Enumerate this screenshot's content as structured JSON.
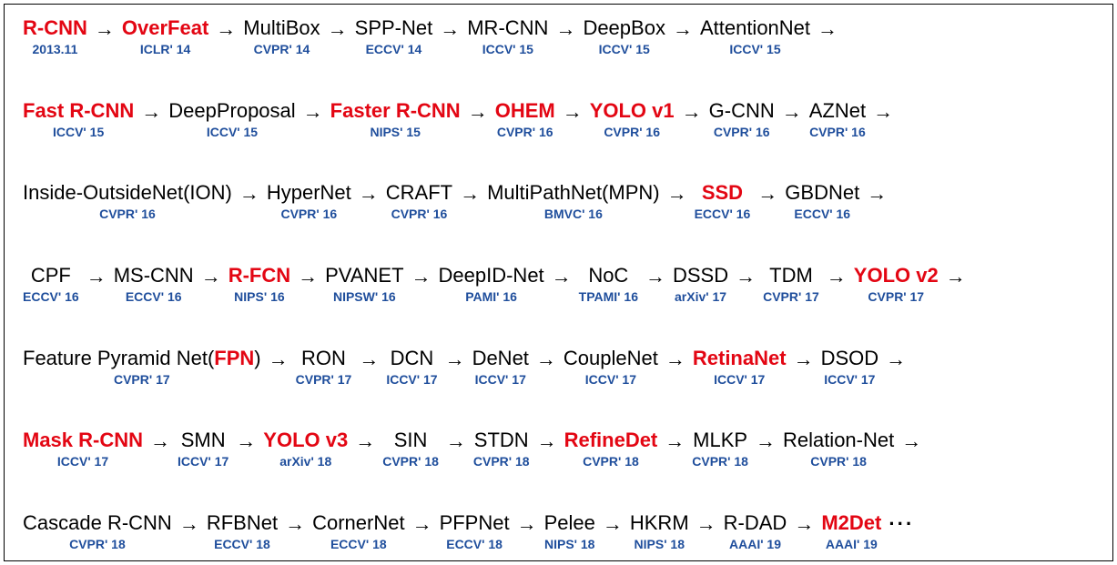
{
  "diagram": {
    "background_color": "#ffffff",
    "border_color": "#000000",
    "title_fontsize": 22,
    "venue_fontsize": 14,
    "highlight_color": "#e30613",
    "venue_color": "#1f4e9c",
    "arrow_glyph": "→",
    "ellipsis_glyph": "···",
    "rows": [
      [
        {
          "title": "R-CNN",
          "venue": "2013.11",
          "highlight": true
        },
        {
          "title": "OverFeat",
          "venue": "ICLR' 14",
          "highlight": true
        },
        {
          "title": "MultiBox",
          "venue": "CVPR' 14"
        },
        {
          "title": "SPP-Net",
          "venue": "ECCV' 14"
        },
        {
          "title": "MR-CNN",
          "venue": "ICCV' 15"
        },
        {
          "title": "DeepBox",
          "venue": "ICCV' 15"
        },
        {
          "title": "AttentionNet",
          "venue": "ICCV' 15"
        }
      ],
      [
        {
          "title": "Fast R-CNN",
          "venue": "ICCV' 15",
          "highlight": true
        },
        {
          "title": "DeepProposal",
          "venue": "ICCV' 15"
        },
        {
          "title": "Faster R-CNN",
          "venue": "NIPS' 15",
          "highlight": true
        },
        {
          "title": "OHEM",
          "venue": "CVPR' 16",
          "highlight": true
        },
        {
          "title": "YOLO v1",
          "venue": "CVPR' 16",
          "highlight": true
        },
        {
          "title": "G-CNN",
          "venue": "CVPR' 16"
        },
        {
          "title": "AZNet",
          "venue": "CVPR' 16"
        }
      ],
      [
        {
          "title": "Inside-OutsideNet(ION)",
          "venue": "CVPR' 16"
        },
        {
          "title": "HyperNet",
          "venue": "CVPR' 16"
        },
        {
          "title": "CRAFT",
          "venue": "CVPR' 16"
        },
        {
          "title": "MultiPathNet(MPN)",
          "venue": "BMVC' 16"
        },
        {
          "title": "SSD",
          "venue": "ECCV' 16",
          "highlight": true
        },
        {
          "title": "GBDNet",
          "venue": "ECCV' 16"
        }
      ],
      [
        {
          "title": "CPF",
          "venue": "ECCV' 16"
        },
        {
          "title": "MS-CNN",
          "venue": "ECCV' 16"
        },
        {
          "title": "R-FCN",
          "venue": "NIPS' 16",
          "highlight": true
        },
        {
          "title": "PVANET",
          "venue": "NIPSW' 16"
        },
        {
          "title": "DeepID-Net",
          "venue": "PAMI' 16"
        },
        {
          "title": "NoC",
          "venue": "TPAMI' 16"
        },
        {
          "title": "DSSD",
          "venue": "arXiv' 17"
        },
        {
          "title": "TDM",
          "venue": "CVPR' 17"
        },
        {
          "title": "YOLO v2",
          "venue": "CVPR' 17",
          "highlight": true
        }
      ],
      [
        {
          "title_html": "Feature Pyramid Net(<span class=\"hl-span\">FPN</span>)",
          "venue": "CVPR' 17"
        },
        {
          "title": "RON",
          "venue": "CVPR' 17"
        },
        {
          "title": "DCN",
          "venue": "ICCV' 17"
        },
        {
          "title": "DeNet",
          "venue": "ICCV' 17"
        },
        {
          "title": "CoupleNet",
          "venue": "ICCV' 17"
        },
        {
          "title": "RetinaNet",
          "venue": "ICCV' 17",
          "highlight": true
        },
        {
          "title": "DSOD",
          "venue": "ICCV' 17"
        }
      ],
      [
        {
          "title": "Mask R-CNN",
          "venue": "ICCV' 17",
          "highlight": true
        },
        {
          "title": "SMN",
          "venue": "ICCV' 17"
        },
        {
          "title": "YOLO v3",
          "venue": "arXiv' 18",
          "highlight": true
        },
        {
          "title": "SIN",
          "venue": "CVPR' 18"
        },
        {
          "title": "STDN",
          "venue": "CVPR' 18"
        },
        {
          "title": "RefineDet",
          "venue": "CVPR' 18",
          "highlight": true
        },
        {
          "title": "MLKP",
          "venue": "CVPR' 18"
        },
        {
          "title": "Relation-Net",
          "venue": "CVPR' 18"
        }
      ],
      [
        {
          "title": "Cascade R-CNN",
          "venue": "CVPR' 18"
        },
        {
          "title": "RFBNet",
          "venue": "ECCV' 18"
        },
        {
          "title": "CornerNet",
          "venue": "ECCV' 18"
        },
        {
          "title": "PFPNet",
          "venue": "ECCV' 18"
        },
        {
          "title": "Pelee",
          "venue": "NIPS' 18"
        },
        {
          "title": "HKRM",
          "venue": "NIPS' 18"
        },
        {
          "title": "R-DAD",
          "venue": "AAAI' 19"
        },
        {
          "title": "M2Det",
          "venue": "AAAI' 19",
          "highlight": true,
          "last": true
        }
      ]
    ]
  }
}
